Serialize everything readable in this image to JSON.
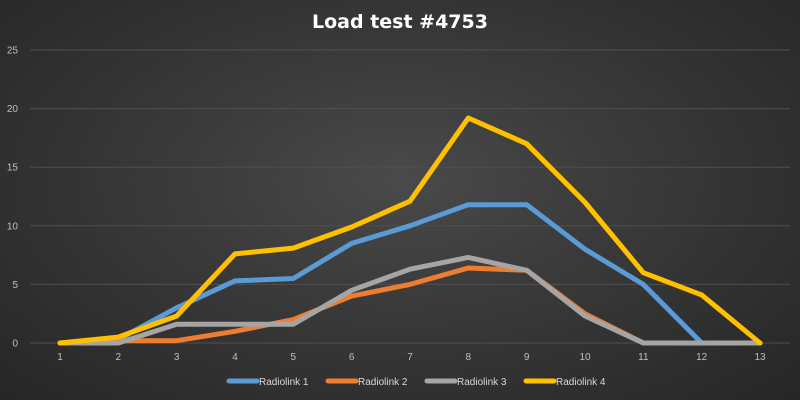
{
  "chart_data": {
    "type": "line",
    "title": "Load test #4753",
    "xlabel": "",
    "ylabel": "",
    "categories": [
      "1",
      "2",
      "3",
      "4",
      "5",
      "6",
      "7",
      "8",
      "9",
      "10",
      "11",
      "12",
      "13"
    ],
    "ylim": [
      0,
      25
    ],
    "yticks": [
      0,
      5,
      10,
      15,
      20,
      25
    ],
    "grid": true,
    "legend_position": "bottom",
    "series": [
      {
        "name": "Radiolink 1",
        "color": "#5b9bd5",
        "values": [
          0,
          0.3,
          3,
          5.3,
          5.5,
          8.5,
          10,
          11.8,
          11.8,
          8,
          5,
          0,
          0
        ]
      },
      {
        "name": "Radiolink 2",
        "color": "#ed7d31",
        "values": [
          0,
          0.2,
          0.2,
          1,
          2,
          4,
          5,
          6.4,
          6.2,
          2.5,
          0,
          0,
          0
        ]
      },
      {
        "name": "Radiolink 3",
        "color": "#a5a5a5",
        "values": [
          0,
          0,
          1.6,
          1.6,
          1.6,
          4.5,
          6.3,
          7.3,
          6.2,
          2.3,
          0,
          0,
          0
        ]
      },
      {
        "name": "Radiolink 4",
        "color": "#ffc000",
        "values": [
          0,
          0.5,
          2.3,
          7.6,
          8.1,
          9.9,
          12.1,
          19.2,
          17,
          12,
          6,
          4.1,
          0
        ]
      }
    ]
  }
}
